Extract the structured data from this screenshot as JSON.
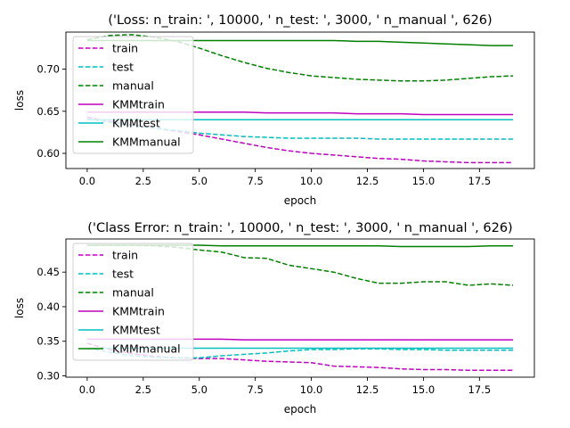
{
  "chart_data": [
    {
      "type": "line",
      "title": "('Loss: n_train: ', 10000, ' n_test: ', 3000, ' n_manual ', 626)",
      "xlabel": "epoch",
      "ylabel": "loss",
      "xlim": [
        -0.95,
        19.95
      ],
      "ylim": [
        0.582,
        0.744
      ],
      "xticks": [
        0.0,
        2.5,
        5.0,
        7.5,
        10.0,
        12.5,
        15.0,
        17.5
      ],
      "xtick_labels": [
        "0.0",
        "2.5",
        "5.0",
        "7.5",
        "10.0",
        "12.5",
        "15.0",
        "17.5"
      ],
      "yticks": [
        0.6,
        0.65,
        0.7
      ],
      "ytick_labels": [
        "0.60",
        "0.65",
        "0.70"
      ],
      "legend_position": "upper-left",
      "grid": false,
      "x": [
        0,
        1,
        2,
        3,
        4,
        5,
        6,
        7,
        8,
        9,
        10,
        11,
        12,
        13,
        14,
        15,
        16,
        17,
        18,
        19
      ],
      "series": [
        {
          "name": "train",
          "color": "#bf00bf",
          "dash": true,
          "values": [
            0.643,
            0.638,
            0.634,
            0.63,
            0.626,
            0.622,
            0.617,
            0.612,
            0.607,
            0.603,
            0.6,
            0.598,
            0.596,
            0.594,
            0.593,
            0.591,
            0.59,
            0.589,
            0.589,
            0.589
          ]
        },
        {
          "name": "test",
          "color": "#00bfbf",
          "dash": true,
          "values": [
            0.641,
            0.637,
            0.633,
            0.63,
            0.627,
            0.624,
            0.622,
            0.62,
            0.619,
            0.618,
            0.618,
            0.618,
            0.618,
            0.617,
            0.617,
            0.617,
            0.617,
            0.617,
            0.617,
            0.617
          ]
        },
        {
          "name": "manual",
          "color": "#008000",
          "dash": true,
          "values": [
            0.735,
            0.74,
            0.741,
            0.738,
            0.733,
            0.725,
            0.716,
            0.708,
            0.701,
            0.696,
            0.692,
            0.69,
            0.688,
            0.687,
            0.686,
            0.686,
            0.687,
            0.689,
            0.691,
            0.692
          ]
        },
        {
          "name": "KMMtrain",
          "color": "#bf00bf",
          "dash": false,
          "values": [
            0.649,
            0.649,
            0.649,
            0.649,
            0.649,
            0.649,
            0.649,
            0.649,
            0.648,
            0.648,
            0.648,
            0.648,
            0.647,
            0.647,
            0.647,
            0.646,
            0.646,
            0.646,
            0.646,
            0.646
          ]
        },
        {
          "name": "KMMtest",
          "color": "#00bfbf",
          "dash": false,
          "values": [
            0.64,
            0.64,
            0.64,
            0.64,
            0.64,
            0.64,
            0.64,
            0.64,
            0.64,
            0.64,
            0.64,
            0.64,
            0.64,
            0.64,
            0.64,
            0.64,
            0.64,
            0.64,
            0.64,
            0.64
          ]
        },
        {
          "name": "KMMmanual",
          "color": "#008000",
          "dash": false,
          "values": [
            0.734,
            0.734,
            0.734,
            0.734,
            0.734,
            0.734,
            0.734,
            0.734,
            0.734,
            0.734,
            0.734,
            0.734,
            0.733,
            0.733,
            0.732,
            0.731,
            0.73,
            0.729,
            0.728,
            0.728
          ]
        }
      ]
    },
    {
      "type": "line",
      "title": "('Class Error: n_train: ', 10000, ' n_test: ', 3000, ' n_manual ', 626)",
      "xlabel": "epoch",
      "ylabel": "loss",
      "xlim": [
        -0.95,
        19.95
      ],
      "ylim": [
        0.298,
        0.498
      ],
      "xticks": [
        0.0,
        2.5,
        5.0,
        7.5,
        10.0,
        12.5,
        15.0,
        17.5
      ],
      "xtick_labels": [
        "0.0",
        "2.5",
        "5.0",
        "7.5",
        "10.0",
        "12.5",
        "15.0",
        "17.5"
      ],
      "yticks": [
        0.3,
        0.35,
        0.4,
        0.45
      ],
      "ytick_labels": [
        "0.30",
        "0.35",
        "0.40",
        "0.45"
      ],
      "legend_position": "upper-left",
      "grid": false,
      "x": [
        0,
        1,
        2,
        3,
        4,
        5,
        6,
        7,
        8,
        9,
        10,
        11,
        12,
        13,
        14,
        15,
        16,
        17,
        18,
        19
      ],
      "series": [
        {
          "name": "train",
          "color": "#bf00bf",
          "dash": true,
          "values": [
            0.347,
            0.338,
            0.332,
            0.328,
            0.326,
            0.325,
            0.325,
            0.323,
            0.321,
            0.32,
            0.319,
            0.314,
            0.313,
            0.312,
            0.31,
            0.309,
            0.309,
            0.308,
            0.308,
            0.308
          ]
        },
        {
          "name": "test",
          "color": "#00bfbf",
          "dash": true,
          "values": [
            0.34,
            0.334,
            0.329,
            0.327,
            0.326,
            0.326,
            0.329,
            0.331,
            0.333,
            0.336,
            0.338,
            0.338,
            0.339,
            0.339,
            0.338,
            0.338,
            0.337,
            0.337,
            0.337,
            0.337
          ]
        },
        {
          "name": "manual",
          "color": "#008000",
          "dash": true,
          "values": [
            0.489,
            0.489,
            0.489,
            0.488,
            0.486,
            0.482,
            0.479,
            0.471,
            0.47,
            0.46,
            0.455,
            0.45,
            0.441,
            0.434,
            0.434,
            0.436,
            0.436,
            0.431,
            0.433,
            0.431
          ]
        },
        {
          "name": "KMMtrain",
          "color": "#bf00bf",
          "dash": false,
          "values": [
            0.353,
            0.353,
            0.353,
            0.353,
            0.353,
            0.353,
            0.353,
            0.352,
            0.352,
            0.352,
            0.352,
            0.352,
            0.352,
            0.352,
            0.352,
            0.352,
            0.352,
            0.352,
            0.352,
            0.352
          ]
        },
        {
          "name": "KMMtest",
          "color": "#00bfbf",
          "dash": false,
          "values": [
            0.34,
            0.34,
            0.34,
            0.34,
            0.34,
            0.34,
            0.34,
            0.34,
            0.34,
            0.34,
            0.34,
            0.34,
            0.34,
            0.34,
            0.34,
            0.34,
            0.34,
            0.34,
            0.34,
            0.34
          ]
        },
        {
          "name": "KMMmanual",
          "color": "#008000",
          "dash": false,
          "values": [
            0.489,
            0.489,
            0.489,
            0.489,
            0.489,
            0.489,
            0.488,
            0.488,
            0.488,
            0.488,
            0.488,
            0.488,
            0.488,
            0.488,
            0.487,
            0.487,
            0.487,
            0.487,
            0.488,
            0.488
          ]
        }
      ]
    }
  ]
}
